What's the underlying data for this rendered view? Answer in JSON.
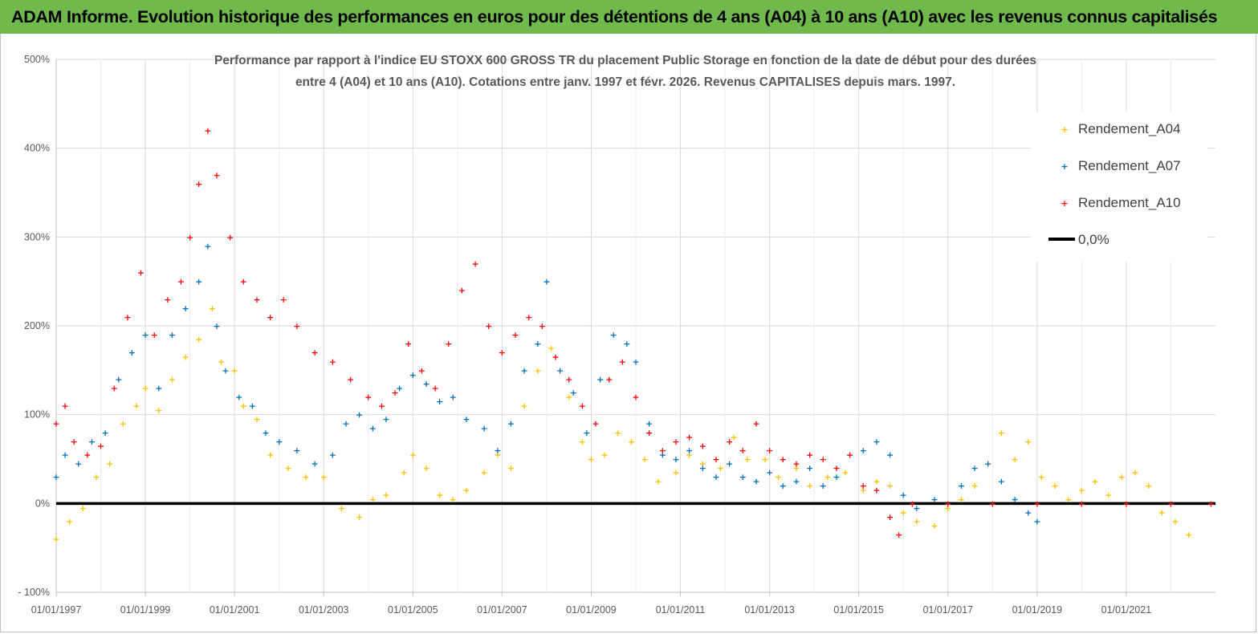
{
  "header": {
    "title": "ADAM Informe. Evolution historique des performances en euros pour des détentions de 4 ans (A04) à 10 ans (A10) avec les revenus connus capitalisés"
  },
  "colors": {
    "banner": "#70b94c",
    "A04": "#ffc000",
    "A07": "#0070c0",
    "A10": "#ff0000",
    "zero": "#000000"
  },
  "chart_data": {
    "type": "scatter",
    "title_lines": [
      "Performance par rapport à l'indice EU STOXX 600 GROSS TR  du placement Public Storage en fonction de la date de début pour des durées",
      "entre 4 (A04) et 10 ans (A10). Cotations entre janv. 1997 et févr. 2026. Revenus CAPITALISES depuis mars. 1997."
    ],
    "ylim": [
      -100,
      500
    ],
    "y_ticks": [
      "- 100%",
      "0%",
      "100%",
      "200%",
      "300%",
      "400%",
      "500%"
    ],
    "x_range": [
      1997.0,
      2023.0
    ],
    "x_ticks": [
      "01/01/1997",
      "01/01/1999",
      "01/01/2001",
      "01/01/2003",
      "01/01/2005",
      "01/01/2007",
      "01/01/2009",
      "01/01/2011",
      "01/01/2013",
      "01/01/2015",
      "01/01/2017",
      "01/01/2019",
      "01/01/2021"
    ],
    "legend_position": "top-right",
    "series": [
      {
        "name": "Rendement_A04",
        "marker": "+",
        "points": [
          [
            1997.0,
            -40
          ],
          [
            1997.3,
            -20
          ],
          [
            1997.6,
            -5
          ],
          [
            1997.9,
            30
          ],
          [
            1998.2,
            45
          ],
          [
            1998.5,
            90
          ],
          [
            1998.8,
            110
          ],
          [
            1999.0,
            130
          ],
          [
            1999.3,
            105
          ],
          [
            1999.6,
            140
          ],
          [
            1999.9,
            165
          ],
          [
            2000.2,
            185
          ],
          [
            2000.5,
            220
          ],
          [
            2000.7,
            160
          ],
          [
            2001.0,
            150
          ],
          [
            2001.2,
            110
          ],
          [
            2001.5,
            95
          ],
          [
            2001.8,
            55
          ],
          [
            2002.2,
            40
          ],
          [
            2002.6,
            30
          ],
          [
            2003.0,
            30
          ],
          [
            2003.4,
            -5
          ],
          [
            2003.8,
            -15
          ],
          [
            2004.1,
            5
          ],
          [
            2004.4,
            10
          ],
          [
            2004.8,
            35
          ],
          [
            2005.0,
            55
          ],
          [
            2005.3,
            40
          ],
          [
            2005.6,
            10
          ],
          [
            2005.9,
            5
          ],
          [
            2006.2,
            15
          ],
          [
            2006.6,
            35
          ],
          [
            2006.9,
            55
          ],
          [
            2007.2,
            40
          ],
          [
            2007.5,
            110
          ],
          [
            2007.8,
            150
          ],
          [
            2008.1,
            175
          ],
          [
            2008.5,
            120
          ],
          [
            2008.8,
            70
          ],
          [
            2009.0,
            50
          ],
          [
            2009.3,
            55
          ],
          [
            2009.6,
            80
          ],
          [
            2009.9,
            70
          ],
          [
            2010.2,
            50
          ],
          [
            2010.5,
            25
          ],
          [
            2010.9,
            35
          ],
          [
            2011.2,
            55
          ],
          [
            2011.5,
            45
          ],
          [
            2011.9,
            40
          ],
          [
            2012.2,
            75
          ],
          [
            2012.5,
            50
          ],
          [
            2012.9,
            50
          ],
          [
            2013.2,
            30
          ],
          [
            2013.6,
            40
          ],
          [
            2013.9,
            20
          ],
          [
            2014.3,
            30
          ],
          [
            2014.7,
            35
          ],
          [
            2015.1,
            15
          ],
          [
            2015.4,
            25
          ],
          [
            2015.7,
            20
          ],
          [
            2016.0,
            -10
          ],
          [
            2016.3,
            -20
          ],
          [
            2016.7,
            -25
          ],
          [
            2017.0,
            -5
          ],
          [
            2017.3,
            5
          ],
          [
            2017.6,
            20
          ],
          [
            2017.9,
            45
          ],
          [
            2018.2,
            80
          ],
          [
            2018.5,
            50
          ],
          [
            2018.8,
            70
          ],
          [
            2019.1,
            30
          ],
          [
            2019.4,
            20
          ],
          [
            2019.7,
            5
          ],
          [
            2020.0,
            15
          ],
          [
            2020.3,
            25
          ],
          [
            2020.6,
            10
          ],
          [
            2020.9,
            30
          ],
          [
            2021.2,
            35
          ],
          [
            2021.5,
            20
          ],
          [
            2021.8,
            -10
          ],
          [
            2022.1,
            -20
          ],
          [
            2022.4,
            -35
          ]
        ]
      },
      {
        "name": "Rendement_A07",
        "marker": "+",
        "points": [
          [
            1997.0,
            30
          ],
          [
            1997.2,
            55
          ],
          [
            1997.5,
            45
          ],
          [
            1997.8,
            70
          ],
          [
            1998.1,
            80
          ],
          [
            1998.4,
            140
          ],
          [
            1998.7,
            170
          ],
          [
            1999.0,
            190
          ],
          [
            1999.3,
            130
          ],
          [
            1999.6,
            190
          ],
          [
            1999.9,
            220
          ],
          [
            2000.2,
            250
          ],
          [
            2000.4,
            290
          ],
          [
            2000.6,
            200
          ],
          [
            2000.8,
            150
          ],
          [
            2001.1,
            120
          ],
          [
            2001.4,
            110
          ],
          [
            2001.7,
            80
          ],
          [
            2002.0,
            70
          ],
          [
            2002.4,
            60
          ],
          [
            2002.8,
            45
          ],
          [
            2003.2,
            55
          ],
          [
            2003.5,
            90
          ],
          [
            2003.8,
            100
          ],
          [
            2004.1,
            85
          ],
          [
            2004.4,
            95
          ],
          [
            2004.7,
            130
          ],
          [
            2005.0,
            145
          ],
          [
            2005.3,
            135
          ],
          [
            2005.6,
            115
          ],
          [
            2005.9,
            120
          ],
          [
            2006.2,
            95
          ],
          [
            2006.6,
            85
          ],
          [
            2006.9,
            60
          ],
          [
            2007.2,
            90
          ],
          [
            2007.5,
            150
          ],
          [
            2007.8,
            180
          ],
          [
            2008.0,
            250
          ],
          [
            2008.3,
            150
          ],
          [
            2008.6,
            125
          ],
          [
            2008.9,
            80
          ],
          [
            2009.2,
            140
          ],
          [
            2009.5,
            190
          ],
          [
            2009.8,
            180
          ],
          [
            2010.0,
            160
          ],
          [
            2010.3,
            90
          ],
          [
            2010.6,
            55
          ],
          [
            2010.9,
            50
          ],
          [
            2011.2,
            60
          ],
          [
            2011.5,
            40
          ],
          [
            2011.8,
            30
          ],
          [
            2012.1,
            45
          ],
          [
            2012.4,
            30
          ],
          [
            2012.7,
            25
          ],
          [
            2013.0,
            35
          ],
          [
            2013.3,
            20
          ],
          [
            2013.6,
            25
          ],
          [
            2013.9,
            40
          ],
          [
            2014.2,
            20
          ],
          [
            2014.5,
            30
          ],
          [
            2014.8,
            55
          ],
          [
            2015.1,
            60
          ],
          [
            2015.4,
            70
          ],
          [
            2015.7,
            55
          ],
          [
            2016.0,
            10
          ],
          [
            2016.3,
            -5
          ],
          [
            2016.7,
            5
          ],
          [
            2017.0,
            0
          ],
          [
            2017.3,
            20
          ],
          [
            2017.6,
            40
          ],
          [
            2017.9,
            45
          ],
          [
            2018.2,
            25
          ],
          [
            2018.5,
            5
          ],
          [
            2018.8,
            -10
          ],
          [
            2019.0,
            -20
          ]
        ]
      },
      {
        "name": "Rendement_A10",
        "marker": "+",
        "points": [
          [
            1997.0,
            90
          ],
          [
            1997.2,
            110
          ],
          [
            1997.4,
            70
          ],
          [
            1997.7,
            55
          ],
          [
            1998.0,
            65
          ],
          [
            1998.3,
            130
          ],
          [
            1998.6,
            210
          ],
          [
            1998.9,
            260
          ],
          [
            1999.2,
            190
          ],
          [
            1999.5,
            230
          ],
          [
            1999.8,
            250
          ],
          [
            2000.0,
            300
          ],
          [
            2000.2,
            360
          ],
          [
            2000.4,
            420
          ],
          [
            2000.6,
            370
          ],
          [
            2000.9,
            300
          ],
          [
            2001.2,
            250
          ],
          [
            2001.5,
            230
          ],
          [
            2001.8,
            210
          ],
          [
            2002.1,
            230
          ],
          [
            2002.4,
            200
          ],
          [
            2002.8,
            170
          ],
          [
            2003.2,
            160
          ],
          [
            2003.6,
            140
          ],
          [
            2004.0,
            120
          ],
          [
            2004.3,
            110
          ],
          [
            2004.6,
            125
          ],
          [
            2004.9,
            180
          ],
          [
            2005.2,
            150
          ],
          [
            2005.5,
            130
          ],
          [
            2005.8,
            180
          ],
          [
            2006.1,
            240
          ],
          [
            2006.4,
            270
          ],
          [
            2006.7,
            200
          ],
          [
            2007.0,
            170
          ],
          [
            2007.3,
            190
          ],
          [
            2007.6,
            210
          ],
          [
            2007.9,
            200
          ],
          [
            2008.2,
            165
          ],
          [
            2008.5,
            140
          ],
          [
            2008.8,
            110
          ],
          [
            2009.1,
            90
          ],
          [
            2009.4,
            140
          ],
          [
            2009.7,
            160
          ],
          [
            2010.0,
            120
          ],
          [
            2010.3,
            80
          ],
          [
            2010.6,
            60
          ],
          [
            2010.9,
            70
          ],
          [
            2011.2,
            75
          ],
          [
            2011.5,
            65
          ],
          [
            2011.8,
            50
          ],
          [
            2012.1,
            70
          ],
          [
            2012.4,
            60
          ],
          [
            2012.7,
            90
          ],
          [
            2013.0,
            60
          ],
          [
            2013.3,
            50
          ],
          [
            2013.6,
            45
          ],
          [
            2013.9,
            55
          ],
          [
            2014.2,
            50
          ],
          [
            2014.5,
            40
          ],
          [
            2014.8,
            55
          ],
          [
            2015.1,
            20
          ],
          [
            2015.4,
            15
          ],
          [
            2015.7,
            -15
          ],
          [
            2015.9,
            -35
          ],
          [
            2016.2,
            0
          ],
          [
            2017.0,
            0
          ],
          [
            2018.0,
            0
          ],
          [
            2019.0,
            0
          ],
          [
            2020.0,
            0
          ],
          [
            2021.0,
            0
          ],
          [
            2022.0,
            0
          ],
          [
            2022.9,
            0
          ]
        ]
      },
      {
        "name": "0,0%",
        "type": "line",
        "points": [
          [
            1997.0,
            0
          ],
          [
            2023.0,
            0
          ]
        ]
      }
    ]
  }
}
